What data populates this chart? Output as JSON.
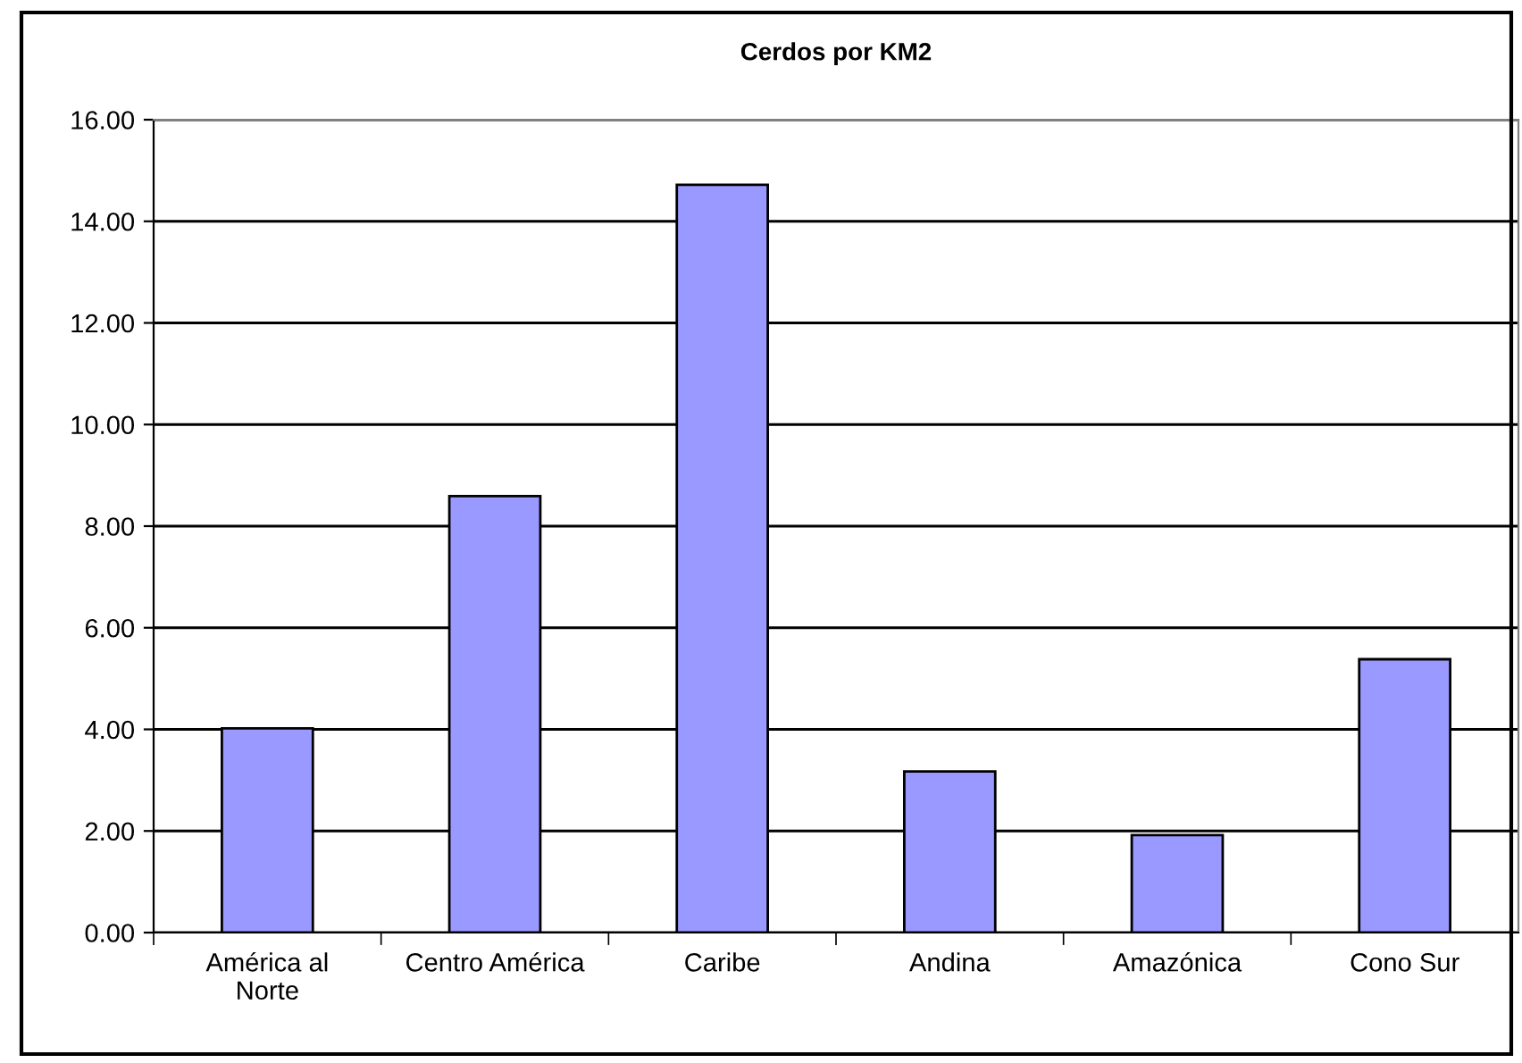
{
  "chart_data": {
    "type": "bar",
    "title": "Cerdos por KM2",
    "categories": [
      "América al\nNorte",
      "Centro América",
      "Caribe",
      "Andina",
      "Amazónica",
      "Cono Sur"
    ],
    "values": [
      4.02,
      8.59,
      14.72,
      3.17,
      1.92,
      5.38
    ],
    "color": "#9999ff",
    "ylim": [
      0,
      16
    ],
    "yticks": [
      {
        "value": 0,
        "label": "0.00"
      },
      {
        "value": 2,
        "label": "2.00"
      },
      {
        "value": 4,
        "label": "4.00"
      },
      {
        "value": 6,
        "label": "6.00"
      },
      {
        "value": 8,
        "label": "8.00"
      },
      {
        "value": 10,
        "label": "10.00"
      },
      {
        "value": 12,
        "label": "12.00"
      },
      {
        "value": 14,
        "label": "14.00"
      },
      {
        "value": 16,
        "label": "16.00"
      }
    ],
    "grid": "y",
    "legend": false
  }
}
